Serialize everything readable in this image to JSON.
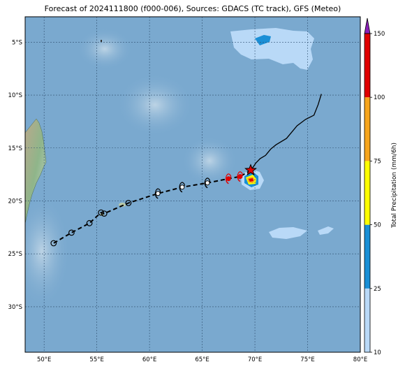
{
  "title": "Forecast of 2024111800 (f000-006), Sources: GDACS (TC track), GFS (Meteo)",
  "map": {
    "lon_range": [
      48.2,
      80.0
    ],
    "lat_range": [
      -34.3,
      -2.6
    ],
    "x_ticks": [
      {
        "value": 50,
        "label": "50°E"
      },
      {
        "value": 55,
        "label": "55°E"
      },
      {
        "value": 60,
        "label": "60°E"
      },
      {
        "value": 65,
        "label": "65°E"
      },
      {
        "value": 70,
        "label": "70°E"
      },
      {
        "value": 75,
        "label": "75°E"
      },
      {
        "value": 80,
        "label": "80°E"
      }
    ],
    "y_ticks": [
      {
        "value": -5,
        "label": "5°S"
      },
      {
        "value": -10,
        "label": "10°S"
      },
      {
        "value": -15,
        "label": "15°S"
      },
      {
        "value": -20,
        "label": "20°S"
      },
      {
        "value": -25,
        "label": "25°S"
      },
      {
        "value": -30,
        "label": "30°S"
      }
    ],
    "grid": true,
    "ocean_color": "#7aa9cf",
    "land_color": "#8fb58a"
  },
  "chart_data": {
    "type": "map",
    "observed_track": [
      [
        76.3,
        -9.9
      ],
      [
        76.0,
        -10.9
      ],
      [
        75.6,
        -11.9
      ],
      [
        74.8,
        -12.3
      ],
      [
        74.0,
        -12.9
      ],
      [
        73.0,
        -14.1
      ],
      [
        72.0,
        -14.7
      ],
      [
        71.5,
        -15.1
      ],
      [
        71.0,
        -15.7
      ],
      [
        70.5,
        -16.0
      ],
      [
        70.1,
        -16.4
      ],
      [
        69.7,
        -17.0
      ]
    ],
    "current_position": [
      69.6,
      -17.1
    ],
    "forecast_track": [
      [
        69.6,
        -17.1
      ],
      [
        68.6,
        -17.7
      ],
      [
        67.5,
        -17.9
      ],
      [
        65.5,
        -18.3
      ],
      [
        63.1,
        -18.7
      ],
      [
        60.8,
        -19.3
      ],
      [
        58.0,
        -20.2
      ],
      [
        55.7,
        -21.2
      ],
      [
        55.4,
        -21.1
      ],
      [
        54.3,
        -22.1
      ],
      [
        52.6,
        -23.0
      ],
      [
        50.9,
        -24.0
      ]
    ],
    "forecast_points": [
      {
        "lon": 68.6,
        "lat": -17.7,
        "symbol": "tc-red"
      },
      {
        "lon": 67.5,
        "lat": -17.9,
        "symbol": "tc-red"
      },
      {
        "lon": 65.5,
        "lat": -18.3,
        "symbol": "tc-black"
      },
      {
        "lon": 63.1,
        "lat": -18.7,
        "symbol": "tc-black"
      },
      {
        "lon": 60.8,
        "lat": -19.3,
        "symbol": "tc-black"
      },
      {
        "lon": 58.0,
        "lat": -20.2,
        "symbol": "circle"
      },
      {
        "lon": 55.7,
        "lat": -21.2,
        "symbol": "circle"
      },
      {
        "lon": 55.4,
        "lat": -21.1,
        "symbol": "circle"
      },
      {
        "lon": 54.3,
        "lat": -22.1,
        "symbol": "circle"
      },
      {
        "lon": 52.6,
        "lat": -23.0,
        "symbol": "circle"
      },
      {
        "lon": 50.9,
        "lat": -24.0,
        "symbol": "circle"
      }
    ],
    "colorbar": {
      "label": "Total Precipitation (mm/6h)",
      "ticks": [
        10,
        25,
        50,
        75,
        100,
        150
      ],
      "colors": [
        "#b9d9f7",
        "#1a8fd6",
        "#ffff00",
        "#f7a51c",
        "#e00000"
      ],
      "extend_color": "#8a1fb8"
    }
  }
}
